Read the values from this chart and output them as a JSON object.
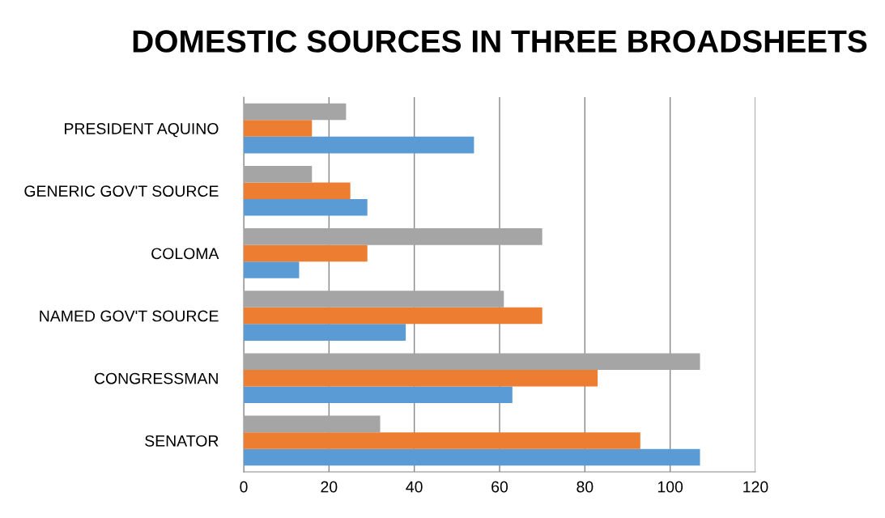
{
  "chart_data": {
    "type": "bar",
    "orientation": "horizontal",
    "title": "DOMESTIC SOURCES IN THREE BROADSHEETS",
    "categories": [
      "PRESIDENT AQUINO",
      "GENERIC GOV'T SOURCE",
      "COLOMA",
      "NAMED GOV'T SOURCE",
      "CONGRESSMAN",
      "SENATOR"
    ],
    "series": [
      {
        "color": "#5b9bd5",
        "values": [
          54,
          29,
          13,
          38,
          63,
          107
        ]
      },
      {
        "color": "#ed7d31",
        "values": [
          16,
          25,
          29,
          70,
          83,
          93
        ]
      },
      {
        "color": "#a5a5a5",
        "values": [
          24,
          16,
          70,
          61,
          107,
          32
        ]
      }
    ],
    "xlim": [
      0,
      120
    ],
    "xticks": [
      0,
      20,
      40,
      60,
      80,
      100,
      120
    ],
    "grid": "x"
  }
}
